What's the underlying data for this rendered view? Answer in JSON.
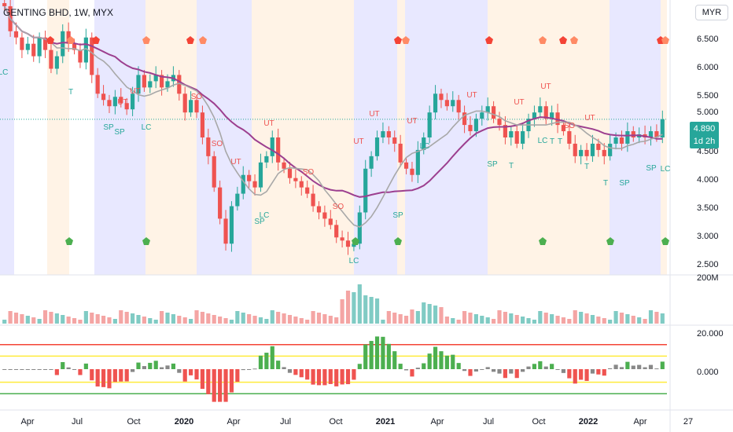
{
  "header": {
    "symbol": "GENTING BHD, 1W, MYX",
    "currency": "MYR"
  },
  "price_tag": {
    "price": "4.890",
    "countdown": "1d 2h"
  },
  "price_axis": [
    "6.500",
    "6.000",
    "5.500",
    "5.000",
    "4.500",
    "4.000",
    "3.500",
    "3.000",
    "2.500"
  ],
  "volume_axis": [
    "200M"
  ],
  "osc_axis": [
    "20.000",
    "0.000"
  ],
  "time_axis": [
    {
      "label": "Apr",
      "bold": false
    },
    {
      "label": "Jul",
      "bold": false
    },
    {
      "label": "Oct",
      "bold": false
    },
    {
      "label": "2020",
      "bold": true
    },
    {
      "label": "Apr",
      "bold": false
    },
    {
      "label": "Jul",
      "bold": false
    },
    {
      "label": "Oct",
      "bold": false
    },
    {
      "label": "2021",
      "bold": true
    },
    {
      "label": "Apr",
      "bold": false
    },
    {
      "label": "Jul",
      "bold": false
    },
    {
      "label": "Oct",
      "bold": false
    },
    {
      "label": "2022",
      "bold": true
    },
    {
      "label": "Apr",
      "bold": false
    },
    {
      "label": "27",
      "bold": false
    }
  ],
  "chart_data": {
    "type": "candlestick",
    "interval": "1W",
    "ylim": [
      2.4,
      6.8
    ],
    "last_price": 4.89,
    "colors": {
      "up": "#26a69a",
      "down": "#ef5350",
      "ma_long": "#9c3f8f",
      "ma_short": "#a8a8a8",
      "bg_warm": "#fff3e6",
      "bg_cool": "#e8e8ff",
      "osc_upper": "#f44336",
      "osc_mid": "#ffeb3b",
      "osc_lower": "#4caf50"
    },
    "close_path": [
      6.7,
      6.3,
      6.2,
      6.0,
      6.1,
      5.9,
      6.2,
      6.0,
      5.7,
      5.9,
      6.3,
      6.1,
      6.0,
      5.8,
      6.2,
      5.6,
      5.3,
      5.2,
      5.1,
      5.25,
      5.15,
      5.05,
      5.3,
      5.6,
      5.4,
      5.5,
      5.6,
      5.4,
      5.5,
      5.6,
      5.3,
      5.0,
      5.2,
      5.0,
      4.6,
      4.3,
      3.8,
      3.3,
      2.9,
      3.5,
      3.7,
      4.0,
      3.9,
      3.8,
      4.2,
      4.3,
      4.6,
      4.2,
      4.1,
      3.95,
      3.9,
      3.8,
      3.7,
      3.5,
      3.4,
      3.3,
      3.2,
      3.0,
      2.95,
      2.85,
      2.9,
      3.4,
      4.1,
      4.3,
      4.6,
      4.7,
      4.6,
      4.5,
      4.2,
      4.1,
      4.0,
      4.4,
      4.6,
      5.0,
      5.3,
      5.2,
      5.1,
      5.2,
      5.0,
      4.8,
      4.7,
      4.9,
      5.0,
      5.1,
      4.9,
      4.8,
      4.6,
      4.7,
      4.5,
      4.7,
      4.9,
      5.0,
      5.1,
      4.9,
      5.0,
      4.8,
      4.7,
      4.5,
      4.3,
      4.4,
      4.3,
      4.5,
      4.4,
      4.3,
      4.5,
      4.6,
      4.5,
      4.7,
      4.6,
      4.65,
      4.6,
      4.7,
      4.6,
      4.89
    ],
    "volume_axis_label": "200M",
    "oscillator": {
      "ylim": [
        -25,
        25
      ],
      "levels": [
        15,
        8,
        -8,
        -15
      ]
    },
    "signal_labels": [
      "LC",
      "T",
      "SP",
      "UT",
      "SO"
    ],
    "x_axis_ticks": [
      "Apr",
      "Jul",
      "Oct",
      "2020",
      "Apr",
      "Jul",
      "Oct",
      "2021",
      "Apr",
      "Jul",
      "Oct",
      "2022",
      "Apr",
      "27"
    ]
  }
}
